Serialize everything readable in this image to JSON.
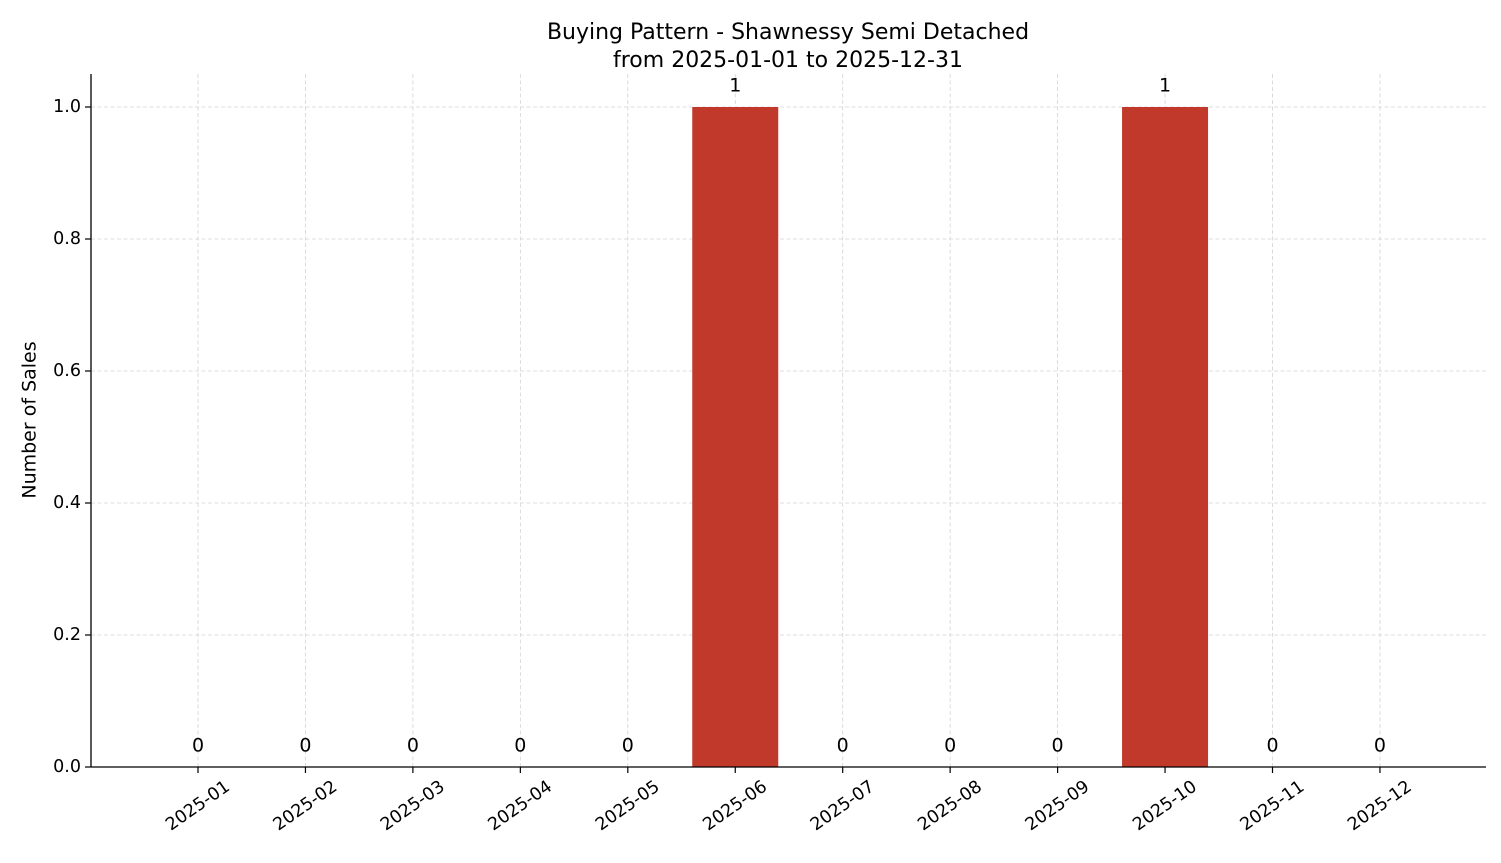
{
  "chart_data": {
    "type": "bar",
    "title": "Buying Pattern - Shawnessy Semi Detached",
    "subtitle": "from 2025-01-01 to 2025-12-31",
    "y_label": "Number of Sales",
    "categories": [
      "2025-01",
      "2025-02",
      "2025-03",
      "2025-04",
      "2025-05",
      "2025-06",
      "2025-07",
      "2025-08",
      "2025-09",
      "2025-10",
      "2025-11",
      "2025-12"
    ],
    "values": [
      0,
      0,
      0,
      0,
      0,
      1,
      0,
      0,
      0,
      1,
      0,
      0
    ],
    "color": "#c0392b",
    "ylim": [
      0,
      1.05
    ],
    "yticks": [
      {
        "value": 0,
        "label": "0.0"
      },
      0.2,
      0.4,
      0.6,
      0.8,
      {
        "value": 1,
        "label": "1.0"
      }
    ],
    "grid": true
  }
}
